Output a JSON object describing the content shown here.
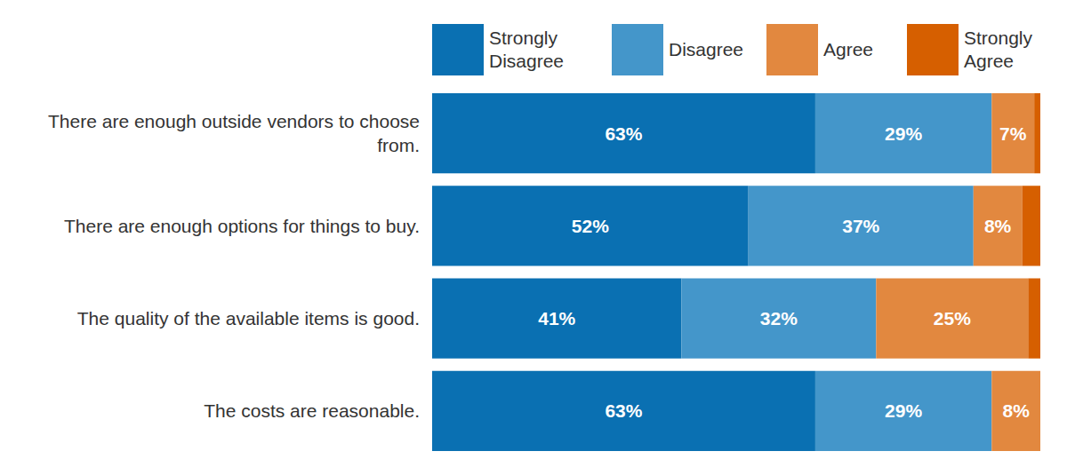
{
  "chart_data": {
    "type": "bar",
    "orientation": "horizontal",
    "stacked": true,
    "data_labels": true,
    "tick_labels": false,
    "grid": false,
    "legend": "top",
    "xlim": [
      0,
      100
    ],
    "categories": [
      "There are enough outside vendors to choose from.",
      "There are enough options for things to buy.",
      "The quality of the available items is good.",
      "The costs are reasonable."
    ],
    "series": [
      {
        "name": "Strongly Disagree",
        "color": "#0a70b2",
        "values": [
          63,
          52,
          41,
          63
        ],
        "value_labels": [
          "63%",
          "52%",
          "41%",
          "63%"
        ]
      },
      {
        "name": "Disagree",
        "color": "#4496ca",
        "values": [
          29,
          37,
          32,
          29
        ],
        "value_labels": [
          "29%",
          "37%",
          "32%",
          "29%"
        ]
      },
      {
        "name": "Agree",
        "color": "#e2883f",
        "values": [
          7,
          8,
          25,
          8
        ],
        "value_labels": [
          "7%",
          "8%",
          "25%",
          "8%"
        ]
      },
      {
        "name": "Strongly Agree",
        "color": "#d65f00",
        "values": [
          1,
          3,
          2,
          0
        ]
      }
    ]
  }
}
